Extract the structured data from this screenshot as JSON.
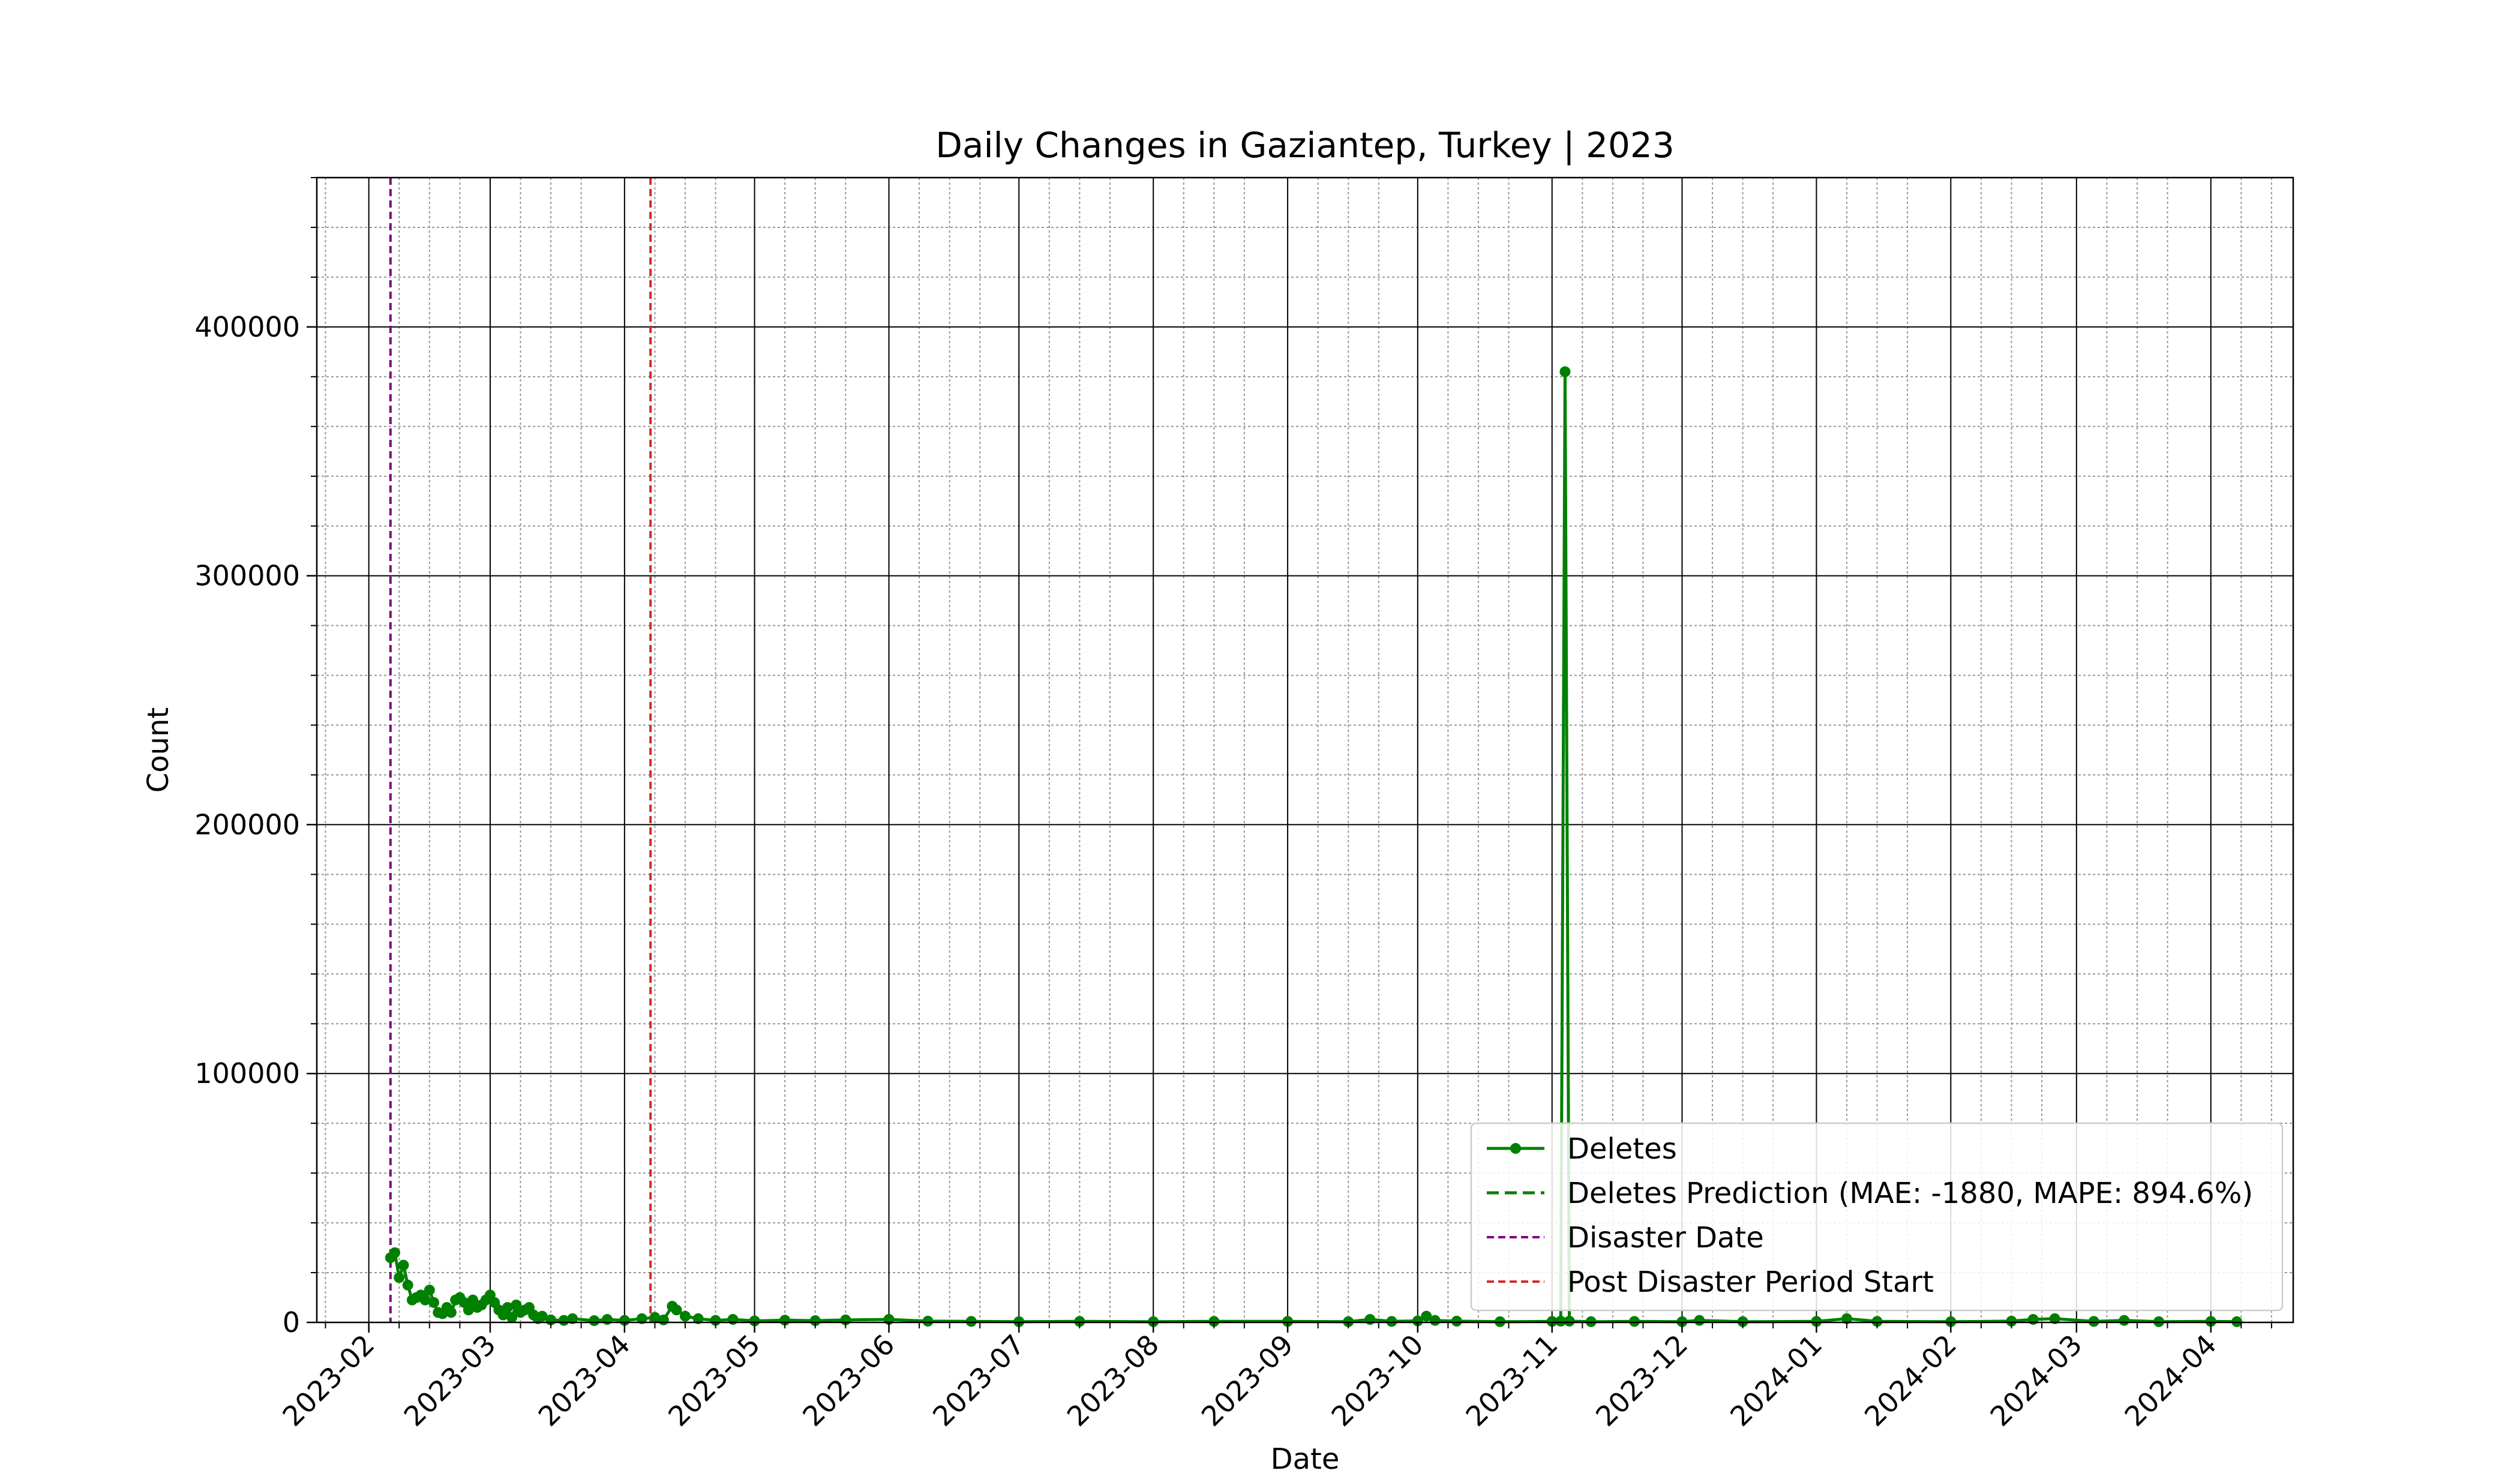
{
  "chart_data": {
    "type": "line",
    "title": "Daily Changes in Gaziantep, Turkey | 2023",
    "xlabel": "Date",
    "ylabel": "Count",
    "xlim": [
      "2023-01-20",
      "2024-04-20"
    ],
    "ylim": [
      0,
      460000
    ],
    "x_ticks": [
      "2023-02",
      "2023-03",
      "2023-04",
      "2023-05",
      "2023-06",
      "2023-07",
      "2023-08",
      "2023-09",
      "2023-10",
      "2023-11",
      "2023-12",
      "2024-01",
      "2024-02",
      "2024-03",
      "2024-04"
    ],
    "y_ticks": [
      "0",
      "100000",
      "200000",
      "300000",
      "400000"
    ],
    "grid": true,
    "legend_position": "lower-right",
    "series": [
      {
        "name": "Deletes",
        "color": "#008000",
        "style": "solid-with-markers",
        "points": [
          [
            "2023-02-06",
            26000
          ],
          [
            "2023-02-07",
            28000
          ],
          [
            "2023-02-08",
            18000
          ],
          [
            "2023-02-09",
            23000
          ],
          [
            "2023-02-10",
            15000
          ],
          [
            "2023-02-11",
            9000
          ],
          [
            "2023-02-12",
            10000
          ],
          [
            "2023-02-13",
            11000
          ],
          [
            "2023-02-14",
            9000
          ],
          [
            "2023-02-15",
            13000
          ],
          [
            "2023-02-16",
            8000
          ],
          [
            "2023-02-17",
            4000
          ],
          [
            "2023-02-18",
            3500
          ],
          [
            "2023-02-19",
            6000
          ],
          [
            "2023-02-20",
            4000
          ],
          [
            "2023-02-21",
            9000
          ],
          [
            "2023-02-22",
            10000
          ],
          [
            "2023-02-23",
            8000
          ],
          [
            "2023-02-24",
            5000
          ],
          [
            "2023-02-25",
            9000
          ],
          [
            "2023-02-26",
            6000
          ],
          [
            "2023-02-27",
            7000
          ],
          [
            "2023-02-28",
            9000
          ],
          [
            "2023-03-01",
            11000
          ],
          [
            "2023-03-02",
            8000
          ],
          [
            "2023-03-03",
            5000
          ],
          [
            "2023-03-04",
            3000
          ],
          [
            "2023-03-05",
            6000
          ],
          [
            "2023-03-06",
            2000
          ],
          [
            "2023-03-07",
            7000
          ],
          [
            "2023-03-08",
            4000
          ],
          [
            "2023-03-09",
            5000
          ],
          [
            "2023-03-10",
            6000
          ],
          [
            "2023-03-11",
            3000
          ],
          [
            "2023-03-12",
            1500
          ],
          [
            "2023-03-13",
            2500
          ],
          [
            "2023-03-15",
            1000
          ],
          [
            "2023-03-18",
            800
          ],
          [
            "2023-03-20",
            1500
          ],
          [
            "2023-03-25",
            700
          ],
          [
            "2023-03-28",
            1200
          ],
          [
            "2023-04-01",
            800
          ],
          [
            "2023-04-05",
            1500
          ],
          [
            "2023-04-08",
            2000
          ],
          [
            "2023-04-10",
            1000
          ],
          [
            "2023-04-12",
            6500
          ],
          [
            "2023-04-13",
            5000
          ],
          [
            "2023-04-15",
            2500
          ],
          [
            "2023-04-18",
            1500
          ],
          [
            "2023-04-22",
            800
          ],
          [
            "2023-04-26",
            1200
          ],
          [
            "2023-05-01",
            600
          ],
          [
            "2023-05-08",
            900
          ],
          [
            "2023-05-15",
            700
          ],
          [
            "2023-05-22",
            1000
          ],
          [
            "2023-06-01",
            1200
          ],
          [
            "2023-06-10",
            500
          ],
          [
            "2023-06-20",
            400
          ],
          [
            "2023-07-01",
            300
          ],
          [
            "2023-07-15",
            400
          ],
          [
            "2023-08-01",
            300
          ],
          [
            "2023-08-15",
            400
          ],
          [
            "2023-09-01",
            400
          ],
          [
            "2023-09-15",
            300
          ],
          [
            "2023-09-20",
            1200
          ],
          [
            "2023-09-25",
            400
          ],
          [
            "2023-10-01",
            600
          ],
          [
            "2023-10-03",
            2500
          ],
          [
            "2023-10-05",
            800
          ],
          [
            "2023-10-10",
            500
          ],
          [
            "2023-10-20",
            300
          ],
          [
            "2023-11-01",
            400
          ],
          [
            "2023-11-03",
            500
          ],
          [
            "2023-11-04",
            382000
          ],
          [
            "2023-11-05",
            500
          ],
          [
            "2023-11-10",
            300
          ],
          [
            "2023-11-20",
            400
          ],
          [
            "2023-12-01",
            300
          ],
          [
            "2023-12-05",
            800
          ],
          [
            "2023-12-15",
            300
          ],
          [
            "2024-01-01",
            400
          ],
          [
            "2024-01-08",
            1500
          ],
          [
            "2024-01-15",
            400
          ],
          [
            "2024-02-01",
            300
          ],
          [
            "2024-02-15",
            500
          ],
          [
            "2024-02-20",
            1200
          ],
          [
            "2024-02-25",
            1500
          ],
          [
            "2024-03-05",
            400
          ],
          [
            "2024-03-12",
            800
          ],
          [
            "2024-03-20",
            300
          ],
          [
            "2024-04-01",
            400
          ],
          [
            "2024-04-07",
            300
          ]
        ]
      },
      {
        "name": "Deletes Prediction (MAE: -1880, MAPE: 894.6%)",
        "color": "#008000",
        "style": "dashed",
        "points": []
      }
    ],
    "vlines": [
      {
        "name": "Disaster Date",
        "x": "2023-02-06",
        "color": "#800080"
      },
      {
        "name": "Post Disaster Period Start",
        "x": "2023-04-07",
        "color": "#d62728"
      }
    ]
  }
}
